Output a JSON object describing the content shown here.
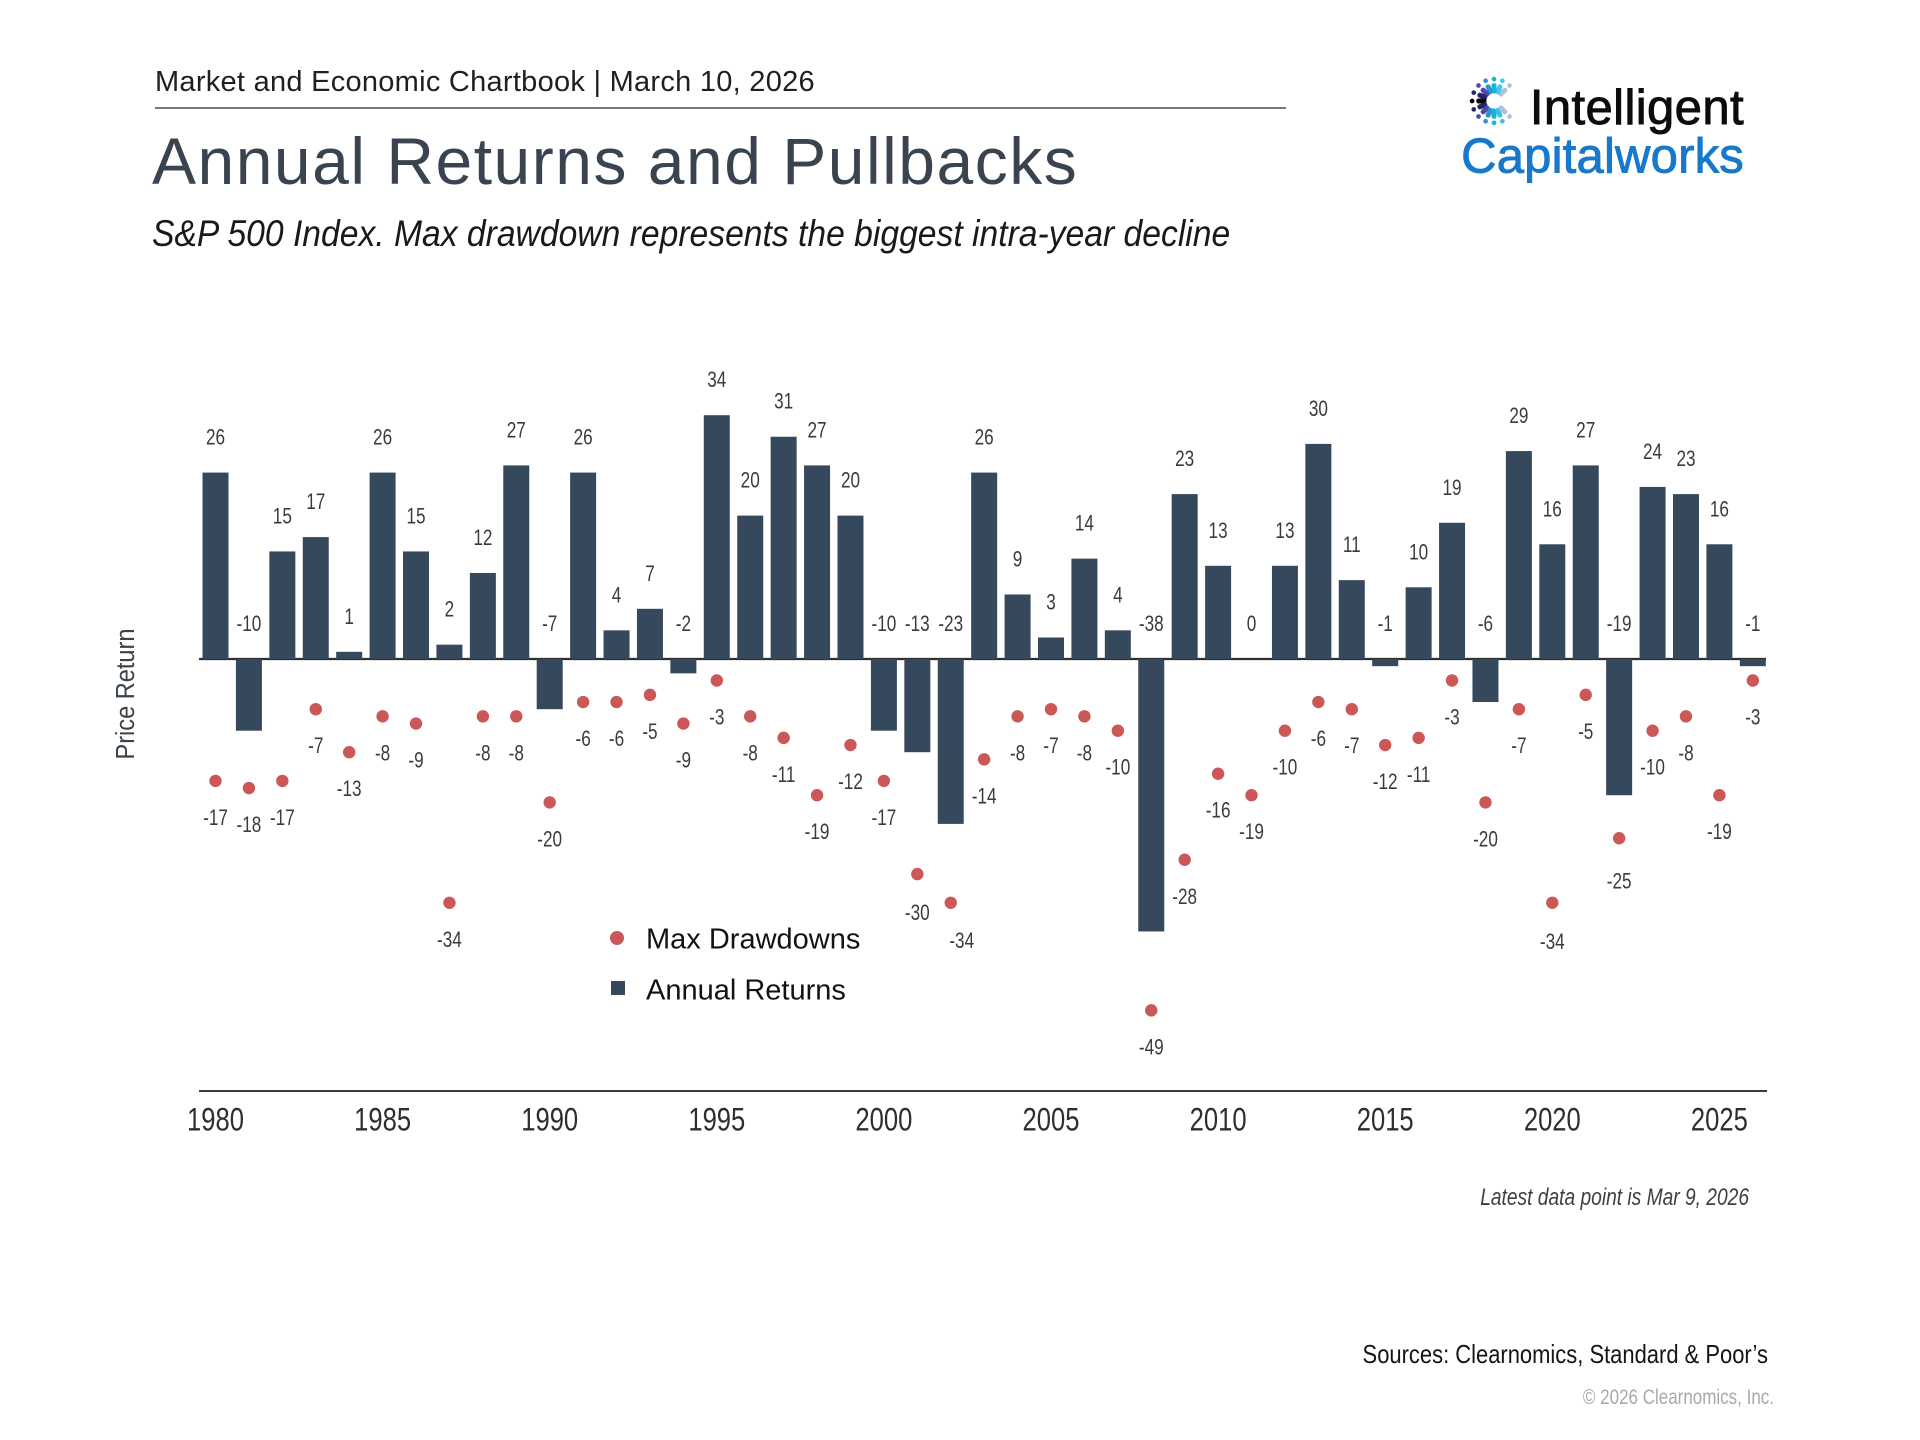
{
  "header": {
    "eyebrow": "Market and Economic Chartbook | March 10, 2026",
    "title": "Annual Returns and Pullbacks",
    "subtitle": "S&P 500 Index. Max drawdown represents the biggest intra-year decline"
  },
  "logo": {
    "line1": "Intelligent",
    "line2": "Capitalworks",
    "line1_color": "#0c0c0e",
    "line2_color": "#1879cb",
    "icon_figure_colors": [
      "#a9c3dd",
      "#3ec8ea",
      "#1ab3d8",
      "#2e93ce",
      "#4a4aac",
      "#232566",
      "#0a0a0e",
      "#232566",
      "#4a4aac",
      "#2e93ce",
      "#1ab3d8",
      "#35c2e5",
      "#a9c3dd"
    ]
  },
  "chart_data": {
    "type": "bar",
    "title": "Annual Returns and Pullbacks",
    "subtitle": "S&P 500 Index. Max drawdown represents the biggest intra-year decline",
    "xlabel": "",
    "ylabel": "Price Return",
    "x": [
      1980,
      1981,
      1982,
      1983,
      1984,
      1985,
      1986,
      1987,
      1988,
      1989,
      1990,
      1991,
      1992,
      1993,
      1994,
      1995,
      1996,
      1997,
      1998,
      1999,
      2000,
      2001,
      2002,
      2003,
      2004,
      2005,
      2006,
      2007,
      2008,
      2009,
      2010,
      2011,
      2012,
      2013,
      2014,
      2015,
      2016,
      2017,
      2018,
      2019,
      2020,
      2021,
      2022,
      2023,
      2024,
      2025,
      2026
    ],
    "series": [
      {
        "name": "Annual Returns",
        "type": "bar",
        "color": "#36495c",
        "values": [
          26,
          -10,
          15,
          17,
          1,
          26,
          15,
          2,
          12,
          27,
          -7,
          26,
          4,
          7,
          -2,
          34,
          20,
          31,
          27,
          20,
          -10,
          -13,
          -23,
          26,
          9,
          3,
          14,
          4,
          -38,
          23,
          13,
          0,
          13,
          30,
          11,
          -1,
          10,
          19,
          -6,
          29,
          16,
          27,
          -19,
          24,
          23,
          16,
          -1
        ]
      },
      {
        "name": "Max Drawdowns",
        "type": "scatter",
        "color": "#cb5757",
        "values": [
          -17,
          -18,
          -17,
          -7,
          -13,
          -8,
          -9,
          -34,
          -8,
          -8,
          -20,
          -6,
          -6,
          -5,
          -9,
          -3,
          -8,
          -11,
          -19,
          -12,
          -17,
          -30,
          -34,
          -14,
          -8,
          -7,
          -8,
          -10,
          -49,
          -28,
          -16,
          -19,
          -10,
          -6,
          -7,
          -12,
          -11,
          -3,
          -20,
          -7,
          -34,
          -5,
          -25,
          -10,
          -8,
          -19,
          -3
        ]
      }
    ],
    "xticks": [
      1980,
      1985,
      1990,
      1995,
      2000,
      2005,
      2010,
      2015,
      2020,
      2025
    ],
    "legend": {
      "items": [
        {
          "label": "Max Drawdowns",
          "marker": "dot",
          "color": "#cb5757"
        },
        {
          "label": "Annual Returns",
          "marker": "square",
          "color": "#36495c"
        }
      ]
    },
    "annotation": "Latest data point is Mar 9, 2026",
    "grid": false,
    "legend_position": "center-below-chart"
  },
  "footer": {
    "sources": "Sources: Clearnomics, Standard & Poor’s",
    "copyright": "© 2026 Clearnomics, Inc."
  }
}
